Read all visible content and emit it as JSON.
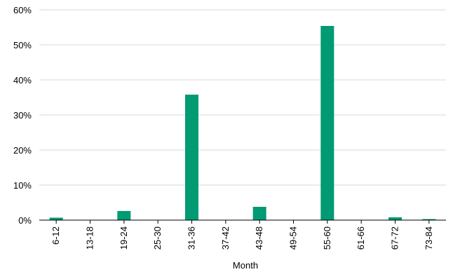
{
  "chart_data": {
    "type": "bar",
    "title": "",
    "xlabel": "Month",
    "ylabel": "",
    "categories": [
      "6-12",
      "13-18",
      "19-24",
      "25-30",
      "31-36",
      "37-42",
      "43-48",
      "49-54",
      "55-60",
      "61-66",
      "67-72",
      "73-84"
    ],
    "values": [
      0.7,
      0.1,
      2.6,
      0.1,
      35.8,
      0.0,
      3.8,
      0.0,
      55.4,
      0.0,
      0.8,
      0.3
    ],
    "ylim": [
      0,
      60
    ],
    "yticks": [
      0,
      10,
      20,
      30,
      40,
      50,
      60
    ],
    "ytick_format": "%",
    "grid": true,
    "bar_color": "#009a73",
    "grid_color": "#d9d9d9",
    "axis_color": "#000000"
  }
}
